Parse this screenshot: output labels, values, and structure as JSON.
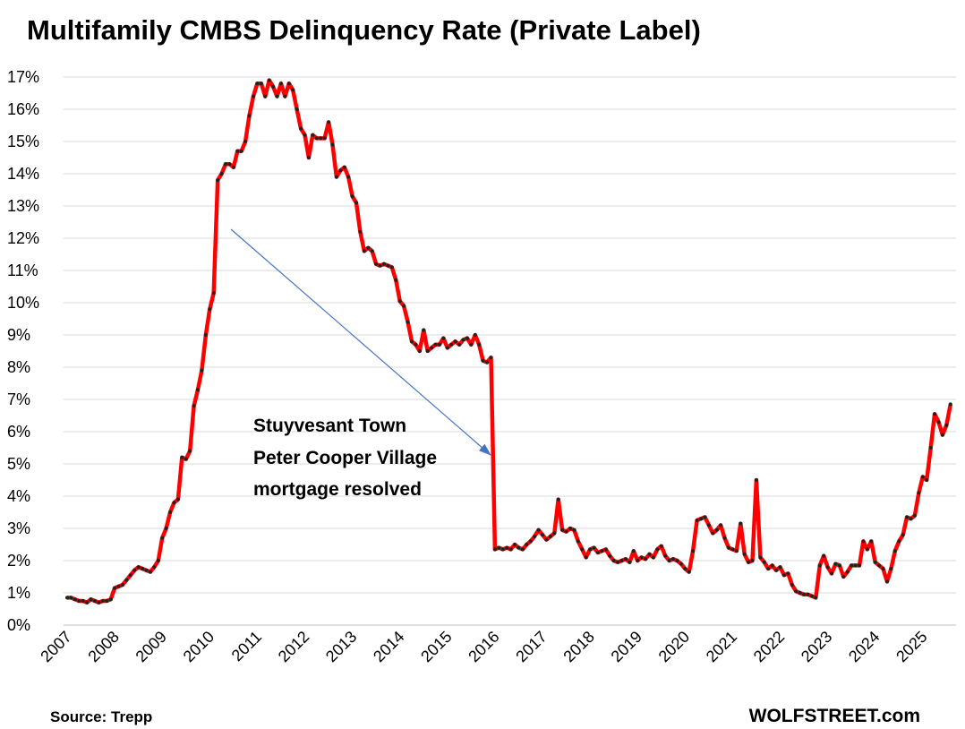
{
  "chart_data": {
    "type": "line",
    "title": "Multifamily CMBS Delinquency Rate (Private Label)",
    "source": "Source: Trepp",
    "credit": "WOLFSTREET.com",
    "annotation": [
      "Stuyvesant Town",
      "Peter Cooper Village",
      "mortgage resolved"
    ],
    "categories": [
      "2007",
      null,
      null,
      null,
      null,
      null,
      null,
      null,
      null,
      null,
      null,
      null,
      "2008",
      null,
      null,
      null,
      null,
      null,
      null,
      null,
      null,
      null,
      null,
      null,
      "2009",
      null,
      null,
      null,
      null,
      null,
      null,
      null,
      null,
      null,
      null,
      null,
      "2010",
      null,
      null,
      null,
      null,
      null,
      null,
      null,
      null,
      null,
      null,
      null,
      "2011",
      null,
      null,
      null,
      null,
      null,
      null,
      null,
      null,
      null,
      null,
      null,
      "2012",
      null,
      null,
      null,
      null,
      null,
      null,
      null,
      null,
      null,
      null,
      null,
      "2013",
      null,
      null,
      null,
      null,
      null,
      null,
      null,
      null,
      null,
      null,
      null,
      "2014",
      null,
      null,
      null,
      null,
      null,
      null,
      null,
      null,
      null,
      null,
      null,
      "2015",
      null,
      null,
      null,
      null,
      null,
      null,
      null,
      null,
      null,
      null,
      null,
      "2016",
      null,
      null,
      null,
      null,
      null,
      null,
      null,
      null,
      null,
      null,
      null,
      "2017",
      null,
      null,
      null,
      null,
      null,
      null,
      null,
      null,
      null,
      null,
      null,
      "2018",
      null,
      null,
      null,
      null,
      null,
      null,
      null,
      null,
      null,
      null,
      null,
      "2019",
      null,
      null,
      null,
      null,
      null,
      null,
      null,
      null,
      null,
      null,
      null,
      "2020",
      null,
      null,
      null,
      null,
      null,
      null,
      null,
      null,
      null,
      null,
      null,
      "2021",
      null,
      null,
      null,
      null,
      null,
      null,
      null,
      null,
      null,
      null,
      null,
      "2022",
      null,
      null,
      null,
      null,
      null,
      null,
      null,
      null,
      null,
      null,
      null,
      "2023",
      null,
      null,
      null,
      null,
      null,
      null,
      null,
      null,
      null,
      null,
      null,
      "2024",
      null,
      null,
      null,
      null,
      null,
      null,
      null,
      null,
      null,
      null,
      null,
      "2025",
      null,
      null,
      null,
      null,
      null,
      null,
      null
    ],
    "series": [
      {
        "name": "Multifamily CMBS Delinquency Rate",
        "color": "#ff0000",
        "marker_color": "#222222",
        "values": [
          0.85,
          0.85,
          0.8,
          0.75,
          0.75,
          0.7,
          0.8,
          0.75,
          0.7,
          0.75,
          0.75,
          0.8,
          1.15,
          1.2,
          1.25,
          1.4,
          1.55,
          1.7,
          1.8,
          1.75,
          1.7,
          1.65,
          1.8,
          2.0,
          2.7,
          3.0,
          3.5,
          3.8,
          3.9,
          5.2,
          5.15,
          5.4,
          6.8,
          7.3,
          7.9,
          9.0,
          9.8,
          10.3,
          13.8,
          14.0,
          14.3,
          14.3,
          14.2,
          14.7,
          14.7,
          15.0,
          15.8,
          16.4,
          16.8,
          16.8,
          16.4,
          16.9,
          16.7,
          16.4,
          16.8,
          16.4,
          16.8,
          16.6,
          16.0,
          15.4,
          15.2,
          14.5,
          15.2,
          15.1,
          15.1,
          15.1,
          15.6,
          14.9,
          13.9,
          14.1,
          14.2,
          13.9,
          13.3,
          13.1,
          12.2,
          11.6,
          11.7,
          11.6,
          11.2,
          11.15,
          11.2,
          11.15,
          11.1,
          10.7,
          10.05,
          9.9,
          9.4,
          8.8,
          8.7,
          8.5,
          9.15,
          8.5,
          8.6,
          8.7,
          8.7,
          8.9,
          8.6,
          8.7,
          8.8,
          8.7,
          8.85,
          8.9,
          8.7,
          9.0,
          8.7,
          8.2,
          8.15,
          8.3,
          2.35,
          2.4,
          2.35,
          2.4,
          2.35,
          2.5,
          2.4,
          2.35,
          2.5,
          2.6,
          2.75,
          2.95,
          2.8,
          2.65,
          2.75,
          2.85,
          3.9,
          2.95,
          2.9,
          3.0,
          2.95,
          2.6,
          2.35,
          2.1,
          2.35,
          2.4,
          2.25,
          2.3,
          2.35,
          2.15,
          2.0,
          1.95,
          2.0,
          2.05,
          1.95,
          2.3,
          2.0,
          2.1,
          2.05,
          2.2,
          2.1,
          2.35,
          2.45,
          2.15,
          2.0,
          2.05,
          2.0,
          1.9,
          1.75,
          1.65,
          2.3,
          3.25,
          3.3,
          3.35,
          3.1,
          2.85,
          2.95,
          3.1,
          2.7,
          2.4,
          2.35,
          2.3,
          3.15,
          2.2,
          1.95,
          2.0,
          4.5,
          2.1,
          1.95,
          1.75,
          1.85,
          1.7,
          1.8,
          1.55,
          1.6,
          1.25,
          1.05,
          1.0,
          0.95,
          0.95,
          0.9,
          0.85,
          1.85,
          2.15,
          1.8,
          1.6,
          1.9,
          1.85,
          1.5,
          1.65,
          1.85,
          1.85,
          1.85,
          2.6,
          2.35,
          2.6,
          1.95,
          1.85,
          1.75,
          1.35,
          1.75,
          2.3,
          2.6,
          2.8,
          3.35,
          3.3,
          3.4,
          4.1,
          4.6,
          4.5,
          5.5,
          6.55,
          6.3,
          5.9,
          6.2,
          6.85
        ]
      }
    ],
    "ylim": [
      0,
      17
    ],
    "yticks": [
      {
        "value": 0,
        "label": "0%"
      },
      {
        "value": 1,
        "label": "1%"
      },
      {
        "value": 2,
        "label": "2%"
      },
      {
        "value": 3,
        "label": "3%"
      },
      {
        "value": 4,
        "label": "4%"
      },
      {
        "value": 5,
        "label": "5%"
      },
      {
        "value": 6,
        "label": "6%"
      },
      {
        "value": 7,
        "label": "7%"
      },
      {
        "value": 8,
        "label": "8%"
      },
      {
        "value": 9,
        "label": "9%"
      },
      {
        "value": 10,
        "label": "10%"
      },
      {
        "value": 11,
        "label": "11%"
      },
      {
        "value": 12,
        "label": "12%"
      },
      {
        "value": 13,
        "label": "13%"
      },
      {
        "value": 14,
        "label": "14%"
      },
      {
        "value": 15,
        "label": "15%"
      },
      {
        "value": 16,
        "label": "16%"
      },
      {
        "value": 17,
        "label": "17%"
      }
    ],
    "grid": true
  }
}
